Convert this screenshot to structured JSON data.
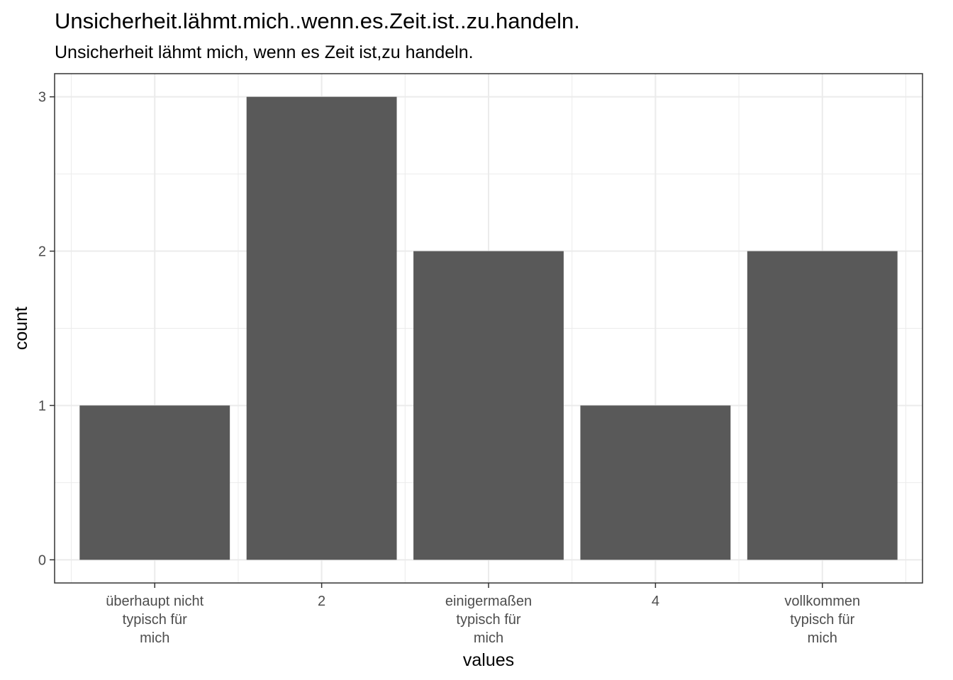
{
  "chart_data": {
    "type": "bar",
    "title": "Unsicherheit.lähmt.mich..wenn.es.Zeit.ist..zu.handeln.",
    "subtitle": "Unsicherheit lähmt mich, wenn es Zeit ist,zu handeln.",
    "xlabel": "values",
    "ylabel": "count",
    "categories": [
      [
        "überhaupt nicht",
        "typisch für",
        "mich"
      ],
      [
        "2"
      ],
      [
        "einigermaßen",
        "typisch für",
        "mich"
      ],
      [
        "4"
      ],
      [
        "vollkommen",
        "typisch für",
        "mich"
      ]
    ],
    "values": [
      1,
      3,
      2,
      1,
      2
    ],
    "ylim": [
      -0.15,
      3.15
    ],
    "yticks": [
      0,
      1,
      2,
      3
    ],
    "grid": true,
    "bar_color": "#595959",
    "grid_color": "#ebebeb",
    "panel_border_color": "#333333"
  }
}
